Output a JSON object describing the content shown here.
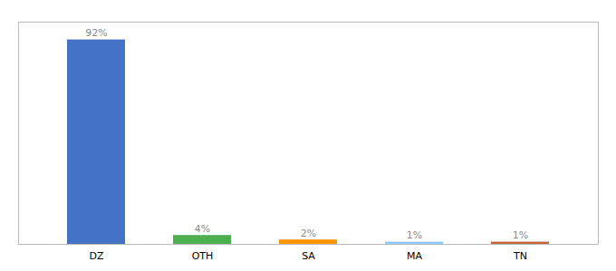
{
  "chart_data": {
    "type": "bar",
    "categories": [
      "DZ",
      "OTH",
      "SA",
      "MA",
      "TN"
    ],
    "values": [
      92,
      4,
      2,
      1,
      1
    ],
    "value_labels": [
      "92%",
      "4%",
      "2%",
      "1%",
      "1%"
    ],
    "data_labels": true,
    "colors": [
      "#4472c4",
      "#4caf50",
      "#ff9800",
      "#90caf9",
      "#c0673a"
    ],
    "ylim": [
      0,
      100
    ],
    "grid": false,
    "tick_labels": "x"
  }
}
